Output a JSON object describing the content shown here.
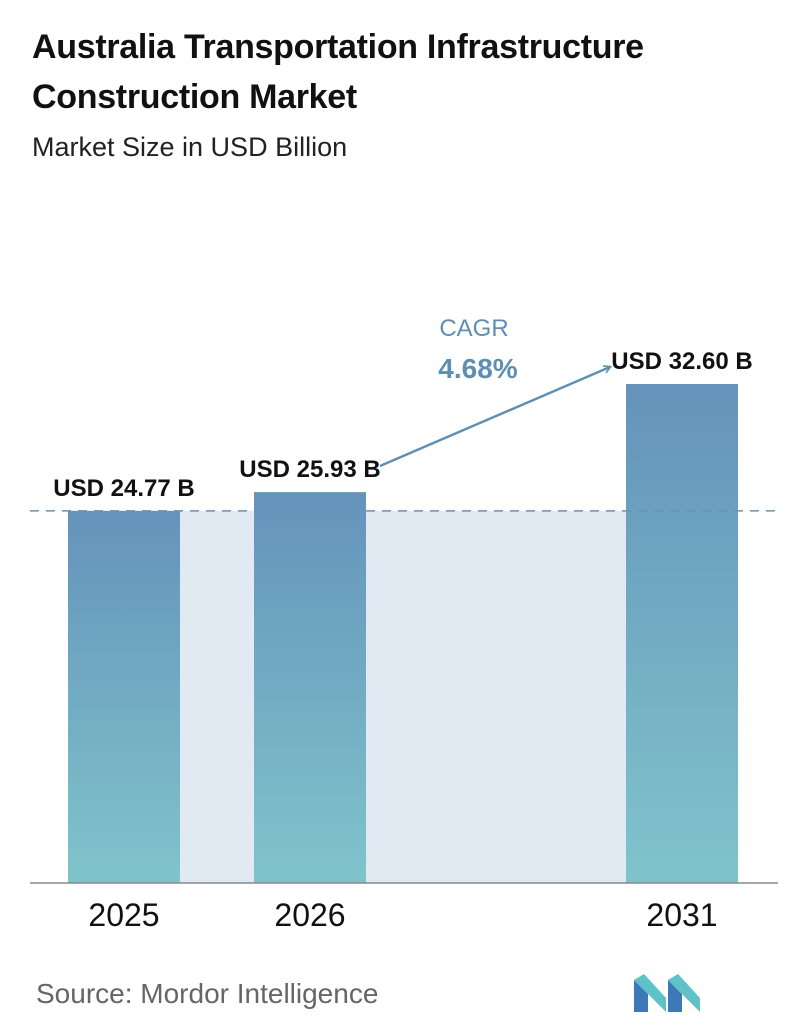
{
  "header": {
    "title": "Australia Transportation Infrastructure Construction Market",
    "subtitle": "Market Size in USD Billion"
  },
  "chart_data": {
    "type": "bar",
    "categories": [
      "2025",
      "2026",
      "2031"
    ],
    "values": [
      24.77,
      25.93,
      32.6
    ],
    "data_labels": [
      "USD 24.77 B",
      "USD 25.93 B",
      "USD 32.60 B"
    ],
    "title": "Australia Transportation Infrastructure Construction Market",
    "subtitle": "Market Size in USD Billion",
    "xlabel": "",
    "ylabel": "",
    "grid": false,
    "annotations": {
      "cagr_label": "CAGR",
      "cagr_value": "4.68%"
    }
  },
  "colors": {
    "bar_top": "#6593bb",
    "bar_bottom": "#7fc4cb",
    "fill_band": "#e1e9f2",
    "annotation": "#5d8fb3"
  },
  "footer": {
    "source": "Source:  Mordor Intelligence",
    "logo_icon": "mordor-intelligence-logo-icon"
  }
}
